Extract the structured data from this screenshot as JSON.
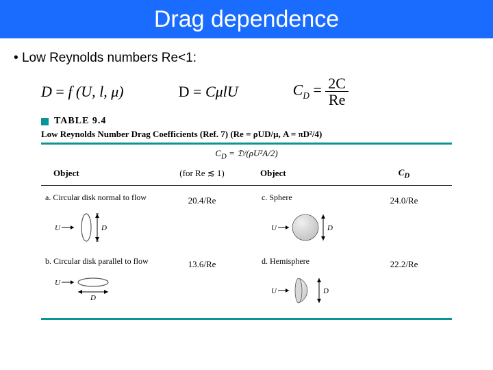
{
  "colors": {
    "title_bg": "#1a6cff",
    "title_fg": "#ffffff",
    "table_accent": "#0b9494",
    "shape_fill": "#bfbfbf",
    "shape_stroke": "#585858"
  },
  "title": "Drag dependence",
  "bullet": "Low Reynolds numbers Re<1:",
  "equations": {
    "eq1_lhs": "D",
    "eq1_rhs": "f (U, l, μ)",
    "eq2_lhs": "D",
    "eq2_rhs": "CμlU",
    "eq3_lhs_base": "C",
    "eq3_lhs_sub": "D",
    "eq3_num": "2C",
    "eq3_den": "Re"
  },
  "table": {
    "label": "TABLE 9.4",
    "caption": "Low Reynolds Number Drag Coefficients (Ref. 7) (Re = ρUD/μ, A = πD²/4)",
    "header_formula": "C_D = 𝔇/(ρU²A/2)",
    "col_object": "Object",
    "col_cd_note": "(for Re ≲ 1)",
    "col_cd": "C_D",
    "rows": [
      {
        "left_key": "a.",
        "left_label": "Circular disk normal to flow",
        "left_cd": "20.4/Re",
        "right_key": "c.",
        "right_label": "Sphere",
        "right_cd": "24.0/Re",
        "left_shape": "disk-normal",
        "right_shape": "sphere"
      },
      {
        "left_key": "b.",
        "left_label": "Circular disk parallel to flow",
        "left_cd": "13.6/Re",
        "right_key": "d.",
        "right_label": "Hemisphere",
        "right_cd": "22.2/Re",
        "left_shape": "disk-parallel",
        "right_shape": "hemisphere"
      }
    ],
    "velocity_label": "U",
    "dimension_label": "D"
  }
}
